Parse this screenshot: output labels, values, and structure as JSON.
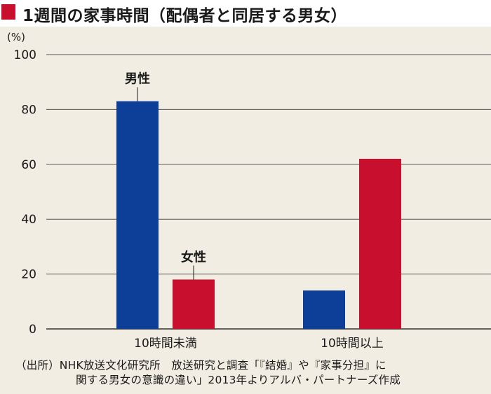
{
  "title": "1週間の家事時間（配偶者と同居する男女）",
  "colors": {
    "accent": "#c8102e",
    "male": "#0d3f99",
    "female": "#c8102e",
    "background": "#f1ede2"
  },
  "chart_data": {
    "type": "bar",
    "title": "",
    "xlabel": "",
    "ylabel": "",
    "yunit": "(%)",
    "ylim": [
      0,
      100
    ],
    "yticks": [
      0,
      20,
      40,
      60,
      80,
      100
    ],
    "grid": true,
    "categories": [
      "10時間未満",
      "10時間以上"
    ],
    "series": [
      {
        "name": "男性",
        "values": [
          83,
          14
        ],
        "color": "#0d3f99"
      },
      {
        "name": "女性",
        "values": [
          18,
          62
        ],
        "color": "#c8102e"
      }
    ]
  },
  "source": {
    "line1": "（出所）NHK放送文化研究所　放送研究と調査「『結婚』や『家事分担』に",
    "line2": "関する男女の意識の違い」2013年よりアルバ・パートナーズ作成"
  }
}
